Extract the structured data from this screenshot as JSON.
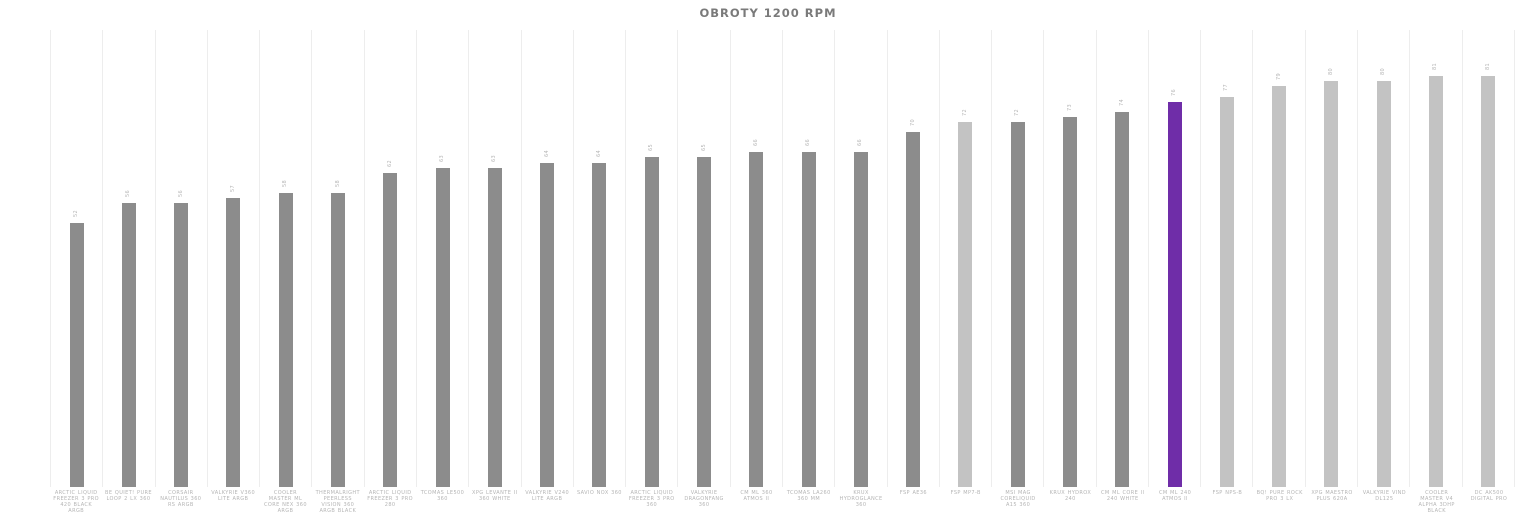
{
  "title": "OBROTY 1200 RPM",
  "colors": {
    "background": "#ffffff",
    "title_text": "#7a7a7a",
    "label_text": "#b5b5b5",
    "gridline": "#ededed",
    "bar_dark": "#8c8c8c",
    "bar_light": "#c3c3c3",
    "bar_highlight": "#6f2da8"
  },
  "chart_data": {
    "type": "bar",
    "title": "OBROTY 1200 RPM",
    "xlabel": "",
    "ylabel": "",
    "ylim": [
      0,
      90
    ],
    "grid": "vertical-column-separators",
    "legend_position": "none",
    "value_labels": "rotated-90-above-bars",
    "highlighted_category": "CM ML 240 ATMOS II",
    "categories": [
      "ARCTIC LIQUID FREEZER 3 PRO 420 BLACK ARGB",
      "BE QUIET! PURE LOOP 2 LX 360",
      "CORSAIR NAUTILUS 360 RS ARGB",
      "VALKYRIE V360 LITE ARGB",
      "COOLER MASTER ML CORE NEX 360 ARGB",
      "THERMALRIGHT PEERLESS VISION 360 ARGB BLACK",
      "ARCTIC LIQUID FREEZER 3 PRO 280",
      "TCOMAS LE500 360",
      "XPG LEVANTE II 360 WHITE",
      "VALKYRIE V240 LITE ARGB",
      "SAVIO NOX 360",
      "ARCTIC LIQUID FREEZER 3 PRO 360",
      "VALKYRIE DRAGONFANG 360",
      "CM ML 360 ATMOS II",
      "TCOMAS LA260 360 MM",
      "KRUX HYDROGLANCE 360",
      "FSP AE36",
      "FSP MP7-B",
      "MSI MAG CORELIQUID A15 360",
      "KRUX HYDROX 240",
      "CM ML CORE II 240 WHITE",
      "CM ML 240 ATMOS II",
      "FSP NPS-B",
      "BQ! PURE ROCK PRO 3 LX",
      "XPG MAESTRO PLUS 620A",
      "VALKYRIE VIND DL125",
      "COOLER MASTER V4 ALPHA 3DHP BLACK",
      "DC AK500 DIGITAL PRO"
    ],
    "values": [
      52,
      56,
      56,
      57,
      58,
      58,
      62,
      63,
      63,
      64,
      64,
      65,
      65,
      66,
      66,
      66,
      70,
      72,
      72,
      73,
      74,
      76,
      77,
      79,
      80,
      80,
      81,
      81
    ],
    "bar_styles": [
      "dark",
      "dark",
      "dark",
      "dark",
      "dark",
      "dark",
      "dark",
      "dark",
      "dark",
      "dark",
      "dark",
      "dark",
      "dark",
      "dark",
      "dark",
      "dark",
      "dark",
      "light",
      "dark",
      "dark",
      "dark",
      "highlight",
      "light",
      "light",
      "light",
      "light",
      "light",
      "light"
    ]
  }
}
